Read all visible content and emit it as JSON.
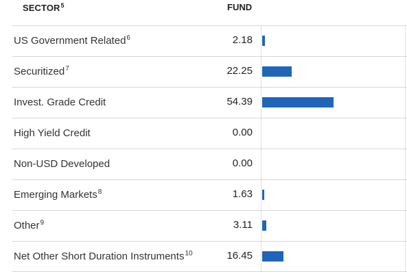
{
  "header": {
    "sector_label": "SECTOR",
    "sector_footnote": "5",
    "fund_label": "FUND"
  },
  "colors": {
    "bar": "#1f65b8",
    "divider": "#d6d6d6"
  },
  "bar_scale_max": 108.78,
  "rows": [
    {
      "label": "US Government Related",
      "footnote": "6",
      "value": "2.18",
      "num": 2.18
    },
    {
      "label": "Securitized",
      "footnote": "7",
      "value": "22.25",
      "num": 22.25
    },
    {
      "label": "Invest. Grade Credit",
      "footnote": "",
      "value": "54.39",
      "num": 54.39
    },
    {
      "label": "High Yield Credit",
      "footnote": "",
      "value": "0.00",
      "num": 0.0
    },
    {
      "label": "Non-USD Developed",
      "footnote": "",
      "value": "0.00",
      "num": 0.0
    },
    {
      "label": "Emerging Markets",
      "footnote": "8",
      "value": "1.63",
      "num": 1.63
    },
    {
      "label": "Other",
      "footnote": "9",
      "value": "3.11",
      "num": 3.11
    },
    {
      "label": "Net Other Short Duration Instruments",
      "footnote": "10",
      "value": "16.45",
      "num": 16.45
    }
  ]
}
